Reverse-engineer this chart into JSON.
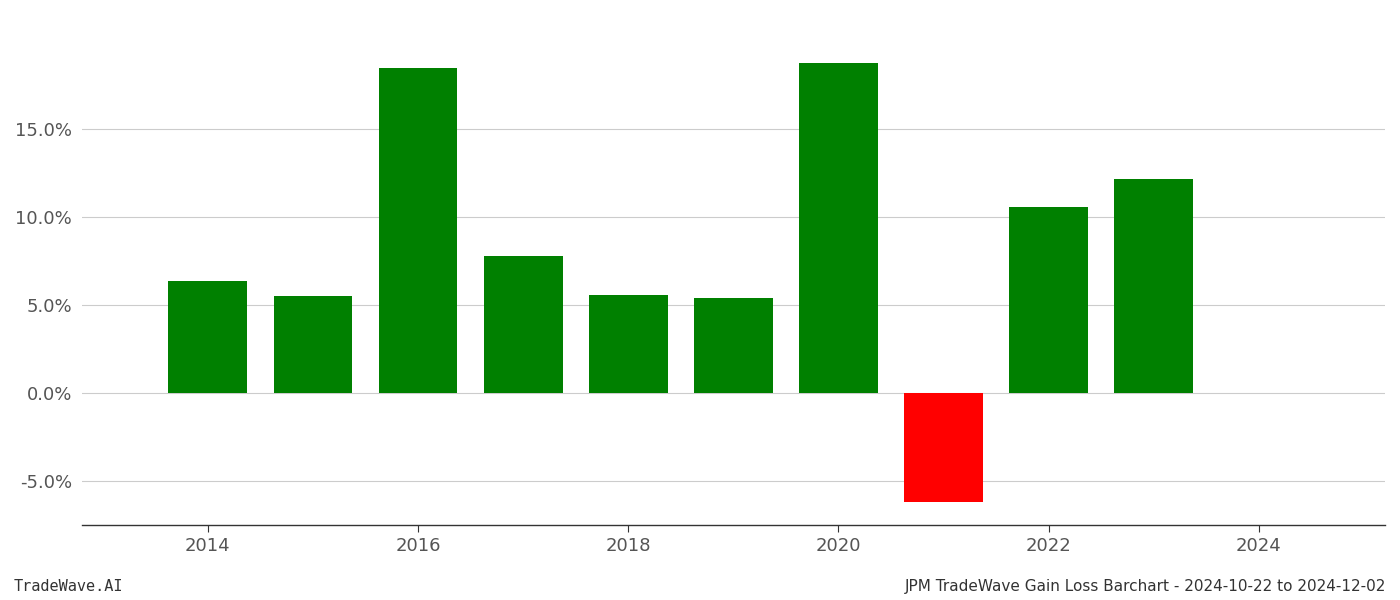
{
  "years": [
    2014,
    2015,
    2016,
    2017,
    2018,
    2019,
    2020,
    2021,
    2022,
    2023
  ],
  "values": [
    0.064,
    0.055,
    0.185,
    0.078,
    0.056,
    0.054,
    0.188,
    -0.062,
    0.106,
    0.122
  ],
  "bar_colors": [
    "#008000",
    "#008000",
    "#008000",
    "#008000",
    "#008000",
    "#008000",
    "#008000",
    "#ff0000",
    "#008000",
    "#008000"
  ],
  "footer_left": "TradeWave.AI",
  "footer_right": "JPM TradeWave Gain Loss Barchart - 2024-10-22 to 2024-12-02",
  "ylim_min": -0.075,
  "ylim_max": 0.215,
  "yticks": [
    -0.05,
    0.0,
    0.05,
    0.1,
    0.15
  ],
  "xlim_min": 2012.8,
  "xlim_max": 2025.2,
  "xticks": [
    2014,
    2016,
    2018,
    2020,
    2022,
    2024
  ],
  "background_color": "#ffffff",
  "grid_color": "#cccccc",
  "bar_width": 0.75,
  "footer_fontsize": 11,
  "tick_fontsize": 13
}
